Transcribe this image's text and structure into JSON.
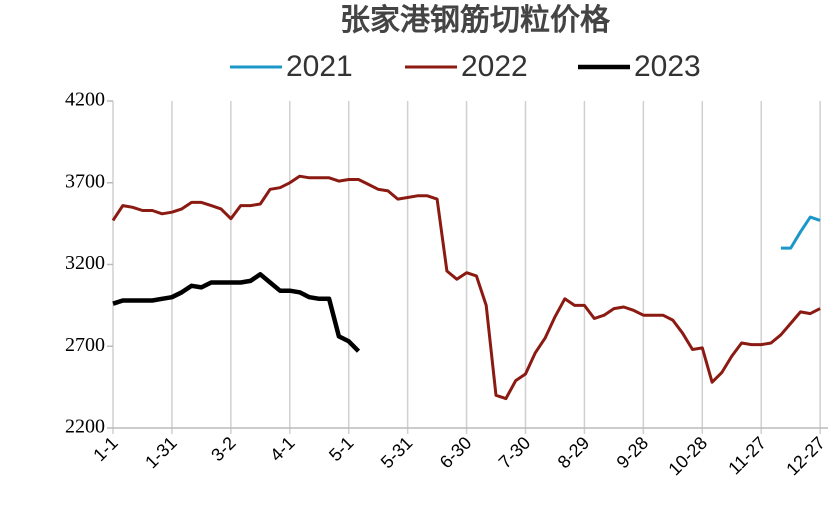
{
  "chart_data": {
    "type": "line",
    "title": "张家港钢筋切粒价格",
    "x": [
      0,
      5,
      10,
      15,
      20,
      25,
      30,
      35,
      40,
      45,
      50,
      55,
      60,
      65,
      70,
      75,
      80,
      85,
      90,
      95,
      100,
      105,
      110,
      115,
      120,
      125,
      130,
      135,
      140,
      145,
      150,
      155,
      160,
      165,
      170,
      175,
      180,
      185,
      190,
      195,
      200,
      205,
      210,
      215,
      220,
      225,
      230,
      235,
      240,
      245,
      250,
      255,
      260,
      265,
      270,
      275,
      280,
      285,
      290,
      295,
      300,
      305,
      310,
      315,
      320,
      325,
      330,
      335,
      340,
      345,
      350,
      355,
      360
    ],
    "series": [
      {
        "name": "2021",
        "color": "#1b98c8",
        "width": 3,
        "values": [
          null,
          null,
          null,
          null,
          null,
          null,
          null,
          null,
          null,
          null,
          null,
          null,
          null,
          null,
          null,
          null,
          null,
          null,
          null,
          null,
          null,
          null,
          null,
          null,
          null,
          null,
          null,
          null,
          null,
          null,
          null,
          null,
          null,
          null,
          null,
          null,
          null,
          null,
          null,
          null,
          null,
          null,
          null,
          null,
          null,
          null,
          null,
          null,
          null,
          null,
          null,
          null,
          null,
          null,
          null,
          null,
          null,
          null,
          null,
          null,
          null,
          null,
          null,
          null,
          null,
          null,
          null,
          null,
          3300,
          3300,
          3400,
          3490,
          3470
        ]
      },
      {
        "name": "2022",
        "color": "#8b1a12",
        "width": 3,
        "values": [
          3470,
          3560,
          3550,
          3530,
          3530,
          3510,
          3520,
          3540,
          3580,
          3580,
          3560,
          3540,
          3480,
          3560,
          3560,
          3570,
          3660,
          3670,
          3700,
          3740,
          3730,
          3730,
          3730,
          3710,
          3720,
          3720,
          3690,
          3660,
          3650,
          3600,
          3610,
          3620,
          3620,
          3600,
          3160,
          3110,
          3150,
          3130,
          2950,
          2400,
          2380,
          2490,
          2530,
          2660,
          2750,
          2880,
          2990,
          2950,
          2950,
          2870,
          2890,
          2930,
          2940,
          2920,
          2890,
          2890,
          2890,
          2860,
          2780,
          2680,
          2690,
          2480,
          2540,
          2640,
          2720,
          2710,
          2710,
          2720,
          2770,
          2840,
          2910,
          2900,
          2930
        ]
      },
      {
        "name": "2023",
        "color": "#000000",
        "width": 4.5,
        "values": [
          2960,
          2980,
          2980,
          2980,
          2980,
          2990,
          3000,
          3030,
          3070,
          3060,
          3090,
          3090,
          3090,
          3090,
          3100,
          3140,
          3090,
          3040,
          3040,
          3030,
          3000,
          2990,
          2990,
          2760,
          2730,
          2670,
          null,
          null,
          null,
          null,
          null,
          null,
          null,
          null,
          null,
          null,
          null,
          null,
          null,
          null,
          null,
          null,
          null,
          null,
          null,
          null,
          null,
          null,
          null,
          null,
          null,
          null,
          null,
          null,
          null,
          null,
          null,
          null,
          null,
          null,
          null,
          null,
          null,
          null,
          null,
          null,
          null,
          null,
          null,
          null,
          null,
          null,
          null
        ]
      }
    ],
    "xlim": [
      0,
      364
    ],
    "xticks": [
      {
        "value": 0,
        "label": "1-1"
      },
      {
        "value": 30,
        "label": "1-31"
      },
      {
        "value": 60,
        "label": "3-2"
      },
      {
        "value": 90,
        "label": "4-1"
      },
      {
        "value": 120,
        "label": "5-1"
      },
      {
        "value": 150,
        "label": "5-31"
      },
      {
        "value": 180,
        "label": "6-30"
      },
      {
        "value": 210,
        "label": "7-30"
      },
      {
        "value": 240,
        "label": "8-29"
      },
      {
        "value": 270,
        "label": "9-28"
      },
      {
        "value": 300,
        "label": "10-28"
      },
      {
        "value": 330,
        "label": "11-27"
      },
      {
        "value": 360,
        "label": "12-27"
      }
    ],
    "ylim": [
      2200,
      4200
    ],
    "yticks": [
      2200,
      2700,
      3200,
      3700,
      4200
    ],
    "grid": true,
    "legend": "top"
  }
}
